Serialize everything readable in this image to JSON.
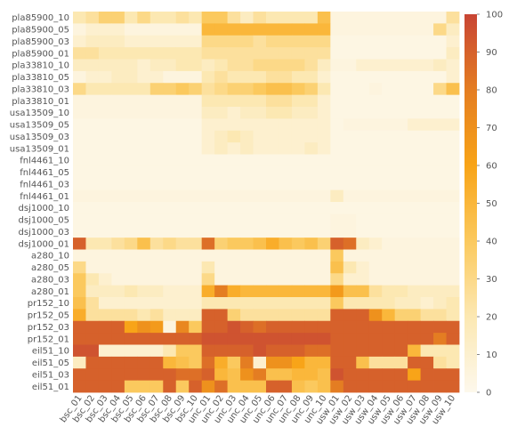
{
  "chart_data": {
    "type": "heatmap",
    "title": "",
    "xlabel": "",
    "ylabel": "",
    "rows": [
      "pla85900_10",
      "pla85900_05",
      "pla85900_03",
      "pla85900_01",
      "pla33810_10",
      "pla33810_05",
      "pla33810_03",
      "pla33810_01",
      "usa13509_10",
      "usa13509_05",
      "usa13509_03",
      "usa13509_01",
      "fnl4461_10",
      "fnl4461_05",
      "fnl4461_03",
      "fnl4461_01",
      "dsj1000_10",
      "dsj1000_05",
      "dsj1000_03",
      "dsj1000_01",
      "a280_10",
      "a280_05",
      "a280_03",
      "a280_01",
      "pr152_10",
      "pr152_05",
      "pr152_03",
      "pr152_01",
      "eil51_10",
      "eil51_05",
      "eil51_03",
      "eil51_01"
    ],
    "columns": [
      "bsc_01",
      "bsc_02",
      "bsc_03",
      "bsc_04",
      "bsc_05",
      "bsc_06",
      "bsc_07",
      "bsc_08",
      "bsc_09",
      "bsc_10",
      "unc_01",
      "unc_02",
      "unc_03",
      "unc_04",
      "unc_05",
      "unc_06",
      "unc_07",
      "unc_08",
      "unc_09",
      "unc_10",
      "usw_01",
      "usw_02",
      "usw_03",
      "usw_04",
      "usw_05",
      "usw_06",
      "usw_07",
      "usw_08",
      "usw_09",
      "usw_10"
    ],
    "values": [
      [
        20,
        25,
        35,
        35,
        20,
        30,
        20,
        20,
        25,
        20,
        40,
        40,
        25,
        15,
        25,
        20,
        20,
        20,
        20,
        45,
        5,
        5,
        5,
        5,
        5,
        5,
        5,
        5,
        5,
        25
      ],
      [
        5,
        10,
        10,
        10,
        5,
        5,
        5,
        5,
        5,
        5,
        50,
        50,
        50,
        50,
        50,
        50,
        50,
        50,
        50,
        50,
        5,
        5,
        5,
        5,
        5,
        5,
        5,
        5,
        30,
        15
      ],
      [
        10,
        15,
        15,
        15,
        10,
        10,
        10,
        10,
        10,
        10,
        30,
        30,
        30,
        30,
        25,
        30,
        30,
        30,
        30,
        30,
        3,
        3,
        3,
        3,
        3,
        3,
        3,
        3,
        3,
        10
      ],
      [
        25,
        25,
        20,
        20,
        20,
        20,
        20,
        20,
        20,
        20,
        25,
        25,
        25,
        25,
        25,
        25,
        25,
        25,
        25,
        25,
        3,
        3,
        3,
        3,
        3,
        3,
        3,
        3,
        3,
        15
      ],
      [
        15,
        15,
        15,
        15,
        15,
        10,
        15,
        15,
        20,
        20,
        15,
        20,
        25,
        25,
        30,
        30,
        30,
        30,
        25,
        15,
        5,
        5,
        10,
        10,
        10,
        10,
        10,
        10,
        15,
        10
      ],
      [
        5,
        10,
        10,
        15,
        15,
        10,
        10,
        5,
        5,
        5,
        20,
        25,
        20,
        20,
        20,
        25,
        25,
        20,
        20,
        10,
        3,
        3,
        3,
        3,
        3,
        3,
        3,
        3,
        3,
        10
      ],
      [
        30,
        20,
        20,
        20,
        20,
        20,
        35,
        35,
        40,
        35,
        25,
        30,
        35,
        35,
        40,
        45,
        45,
        40,
        35,
        20,
        3,
        3,
        3,
        5,
        3,
        3,
        3,
        3,
        30,
        45
      ],
      [
        5,
        5,
        5,
        5,
        5,
        5,
        5,
        5,
        5,
        5,
        20,
        20,
        20,
        20,
        20,
        25,
        25,
        20,
        20,
        10,
        3,
        3,
        3,
        3,
        3,
        3,
        3,
        3,
        3,
        3
      ],
      [
        5,
        5,
        5,
        5,
        5,
        5,
        5,
        5,
        5,
        5,
        15,
        15,
        10,
        15,
        15,
        20,
        20,
        15,
        15,
        10,
        3,
        3,
        3,
        3,
        3,
        3,
        3,
        3,
        3,
        3
      ],
      [
        3,
        3,
        3,
        3,
        3,
        3,
        3,
        3,
        3,
        3,
        10,
        10,
        10,
        10,
        10,
        10,
        10,
        10,
        10,
        10,
        3,
        5,
        5,
        5,
        5,
        5,
        10,
        10,
        10,
        10
      ],
      [
        3,
        3,
        3,
        3,
        3,
        3,
        3,
        3,
        3,
        3,
        10,
        15,
        20,
        15,
        10,
        10,
        10,
        10,
        10,
        10,
        3,
        3,
        3,
        3,
        3,
        3,
        3,
        3,
        3,
        3
      ],
      [
        3,
        3,
        3,
        3,
        3,
        3,
        3,
        3,
        3,
        3,
        10,
        15,
        10,
        15,
        10,
        10,
        10,
        10,
        15,
        10,
        3,
        3,
        3,
        3,
        3,
        3,
        3,
        3,
        3,
        3
      ],
      [
        3,
        3,
        3,
        3,
        3,
        3,
        3,
        3,
        3,
        3,
        3,
        3,
        3,
        3,
        3,
        3,
        3,
        3,
        3,
        3,
        3,
        3,
        3,
        3,
        3,
        3,
        3,
        3,
        3,
        3
      ],
      [
        3,
        3,
        3,
        3,
        3,
        3,
        3,
        3,
        3,
        3,
        3,
        3,
        3,
        3,
        3,
        3,
        3,
        3,
        3,
        3,
        3,
        3,
        3,
        3,
        3,
        3,
        3,
        3,
        3,
        3
      ],
      [
        3,
        3,
        3,
        3,
        3,
        3,
        3,
        3,
        3,
        3,
        3,
        3,
        3,
        3,
        3,
        3,
        3,
        3,
        3,
        3,
        3,
        3,
        3,
        3,
        3,
        3,
        3,
        3,
        3,
        3
      ],
      [
        5,
        5,
        5,
        5,
        5,
        5,
        5,
        5,
        5,
        5,
        5,
        5,
        5,
        5,
        5,
        5,
        5,
        5,
        5,
        5,
        15,
        5,
        5,
        5,
        5,
        5,
        5,
        5,
        5,
        5
      ],
      [
        3,
        3,
        3,
        3,
        3,
        3,
        3,
        3,
        3,
        3,
        3,
        3,
        3,
        3,
        3,
        3,
        3,
        3,
        3,
        3,
        3,
        3,
        3,
        3,
        3,
        3,
        3,
        3,
        3,
        3
      ],
      [
        3,
        3,
        3,
        3,
        3,
        3,
        3,
        3,
        3,
        3,
        3,
        3,
        3,
        3,
        3,
        3,
        3,
        3,
        3,
        3,
        5,
        5,
        3,
        3,
        3,
        3,
        3,
        3,
        3,
        3
      ],
      [
        3,
        3,
        3,
        3,
        3,
        3,
        3,
        3,
        3,
        3,
        3,
        3,
        3,
        3,
        3,
        3,
        3,
        3,
        3,
        3,
        5,
        5,
        3,
        3,
        3,
        3,
        3,
        3,
        3,
        3
      ],
      [
        90,
        20,
        20,
        25,
        30,
        45,
        25,
        30,
        25,
        25,
        85,
        35,
        40,
        40,
        45,
        55,
        45,
        40,
        45,
        35,
        90,
        85,
        15,
        10,
        5,
        5,
        5,
        5,
        5,
        5
      ],
      [
        5,
        5,
        5,
        5,
        5,
        5,
        5,
        5,
        5,
        5,
        5,
        5,
        5,
        5,
        5,
        5,
        5,
        5,
        5,
        5,
        40,
        5,
        5,
        5,
        5,
        5,
        5,
        5,
        5,
        5
      ],
      [
        30,
        5,
        5,
        5,
        5,
        5,
        5,
        5,
        5,
        5,
        20,
        5,
        5,
        5,
        5,
        5,
        5,
        5,
        5,
        5,
        45,
        20,
        10,
        5,
        5,
        5,
        5,
        5,
        5,
        5
      ],
      [
        40,
        20,
        10,
        5,
        5,
        5,
        5,
        5,
        5,
        5,
        30,
        5,
        5,
        5,
        5,
        5,
        5,
        5,
        5,
        5,
        30,
        10,
        10,
        5,
        5,
        5,
        5,
        5,
        5,
        5
      ],
      [
        40,
        15,
        15,
        15,
        20,
        15,
        15,
        10,
        10,
        10,
        55,
        80,
        55,
        50,
        50,
        50,
        50,
        50,
        50,
        50,
        65,
        45,
        45,
        25,
        20,
        20,
        15,
        15,
        15,
        15
      ],
      [
        45,
        25,
        10,
        10,
        10,
        10,
        10,
        10,
        10,
        10,
        20,
        20,
        20,
        20,
        20,
        20,
        20,
        20,
        20,
        20,
        40,
        20,
        20,
        20,
        20,
        15,
        15,
        10,
        15,
        20
      ],
      [
        55,
        25,
        25,
        25,
        25,
        20,
        25,
        15,
        15,
        15,
        90,
        90,
        35,
        25,
        25,
        25,
        25,
        25,
        25,
        25,
        90,
        90,
        90,
        70,
        50,
        35,
        35,
        25,
        25,
        20
      ],
      [
        90,
        90,
        90,
        90,
        60,
        70,
        65,
        5,
        75,
        40,
        90,
        90,
        95,
        90,
        85,
        90,
        90,
        90,
        90,
        90,
        90,
        90,
        90,
        90,
        90,
        90,
        90,
        90,
        90,
        90
      ],
      [
        90,
        90,
        90,
        90,
        90,
        90,
        90,
        90,
        90,
        90,
        95,
        95,
        95,
        95,
        95,
        95,
        95,
        95,
        95,
        95,
        90,
        90,
        90,
        90,
        90,
        90,
        90,
        90,
        80,
        90
      ],
      [
        95,
        95,
        10,
        10,
        10,
        10,
        10,
        20,
        40,
        40,
        90,
        90,
        90,
        90,
        95,
        90,
        90,
        90,
        85,
        85,
        90,
        90,
        90,
        90,
        90,
        90,
        50,
        20,
        20,
        20
      ],
      [
        15,
        90,
        90,
        90,
        90,
        90,
        90,
        50,
        45,
        40,
        85,
        55,
        40,
        80,
        10,
        70,
        70,
        60,
        50,
        50,
        90,
        90,
        45,
        25,
        25,
        25,
        90,
        90,
        25,
        20
      ],
      [
        90,
        90,
        90,
        90,
        90,
        90,
        90,
        90,
        85,
        85,
        90,
        50,
        45,
        70,
        80,
        45,
        45,
        50,
        50,
        45,
        95,
        90,
        90,
        90,
        90,
        90,
        60,
        90,
        90,
        90
      ],
      [
        90,
        90,
        90,
        90,
        40,
        40,
        40,
        90,
        40,
        90,
        70,
        85,
        45,
        45,
        45,
        90,
        90,
        45,
        40,
        45,
        80,
        90,
        90,
        90,
        90,
        90,
        90,
        90,
        90,
        90
      ]
    ],
    "colorbar": {
      "min": 0,
      "max": 100,
      "ticks": [
        0,
        10,
        20,
        30,
        40,
        50,
        60,
        70,
        80,
        90,
        100
      ]
    },
    "colormap_colors": [
      "#fdf8ec",
      "#fce8b2",
      "#fbc95e",
      "#f8a418",
      "#e47d22",
      "#c84534"
    ],
    "grid": false
  }
}
